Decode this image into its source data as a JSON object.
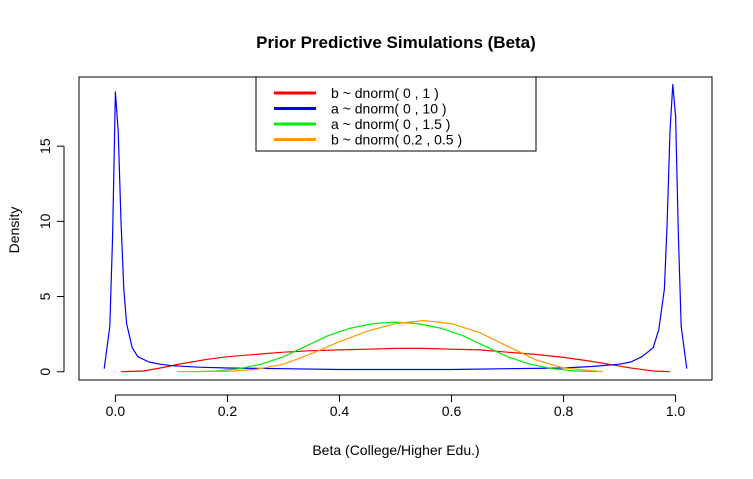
{
  "chart_data": {
    "type": "line",
    "title": "Prior Predictive Simulations (Beta)",
    "xlabel": "Beta (College/Higher Edu.)",
    "ylabel": "Density",
    "xlim": [
      -0.065,
      1.065
    ],
    "ylim": [
      -0.55,
      19.6
    ],
    "x_ticks": [
      0.0,
      0.2,
      0.4,
      0.6,
      0.8,
      1.0
    ],
    "x_tick_labels": [
      "0.0",
      "0.2",
      "0.4",
      "0.6",
      "0.8",
      "1.0"
    ],
    "y_ticks": [
      0,
      5,
      10,
      15
    ],
    "y_tick_labels": [
      "0",
      "5",
      "10",
      "15"
    ],
    "legend_position": "top-center",
    "series": [
      {
        "name": "b ~ dnorm( 0 , 1 )",
        "color": "#ff0000",
        "x": [
          0.01,
          0.05,
          0.08,
          0.12,
          0.16,
          0.2,
          0.25,
          0.3,
          0.35,
          0.4,
          0.45,
          0.5,
          0.55,
          0.6,
          0.65,
          0.7,
          0.75,
          0.8,
          0.84,
          0.88,
          0.92,
          0.96,
          0.99
        ],
        "y": [
          0.0,
          0.05,
          0.25,
          0.55,
          0.8,
          1.0,
          1.15,
          1.3,
          1.4,
          1.45,
          1.5,
          1.55,
          1.55,
          1.5,
          1.45,
          1.3,
          1.15,
          0.95,
          0.75,
          0.5,
          0.25,
          0.05,
          0.0
        ]
      },
      {
        "name": "a ~ dnorm( 0 , 10 )",
        "color": "#0000ff",
        "x": [
          -0.02,
          -0.01,
          -0.005,
          0.0,
          0.005,
          0.01,
          0.015,
          0.02,
          0.03,
          0.04,
          0.06,
          0.08,
          0.1,
          0.15,
          0.2,
          0.3,
          0.4,
          0.5,
          0.6,
          0.7,
          0.8,
          0.85,
          0.9,
          0.92,
          0.94,
          0.96,
          0.97,
          0.98,
          0.985,
          0.99,
          0.995,
          1.0,
          1.005,
          1.01,
          1.02
        ],
        "y": [
          0.2,
          3.0,
          9.0,
          18.6,
          16.0,
          10.0,
          5.5,
          3.2,
          1.6,
          1.0,
          0.65,
          0.5,
          0.4,
          0.3,
          0.25,
          0.2,
          0.15,
          0.15,
          0.15,
          0.2,
          0.25,
          0.35,
          0.5,
          0.65,
          1.0,
          1.6,
          2.8,
          5.5,
          10.0,
          16.0,
          19.1,
          17.0,
          9.0,
          3.0,
          0.2
        ]
      },
      {
        "name": "a ~ dnorm( 0 , 1.5 )",
        "color": "#00ee00",
        "x": [
          0.14,
          0.18,
          0.22,
          0.26,
          0.3,
          0.34,
          0.38,
          0.42,
          0.46,
          0.5,
          0.54,
          0.58,
          0.62,
          0.66,
          0.7,
          0.74,
          0.78,
          0.82,
          0.86
        ],
        "y": [
          0.0,
          0.05,
          0.2,
          0.5,
          1.0,
          1.7,
          2.4,
          2.9,
          3.2,
          3.3,
          3.2,
          2.9,
          2.4,
          1.7,
          1.0,
          0.5,
          0.2,
          0.05,
          0.0
        ]
      },
      {
        "name": "b ~ dnorm( 0.2 , 0.5 )",
        "color": "#ff9900",
        "x": [
          0.11,
          0.2,
          0.25,
          0.3,
          0.35,
          0.4,
          0.45,
          0.5,
          0.55,
          0.6,
          0.65,
          0.7,
          0.75,
          0.8,
          0.87
        ],
        "y": [
          0.0,
          0.02,
          0.15,
          0.5,
          1.2,
          2.0,
          2.7,
          3.2,
          3.4,
          3.2,
          2.6,
          1.7,
          0.8,
          0.25,
          0.0
        ]
      }
    ]
  }
}
